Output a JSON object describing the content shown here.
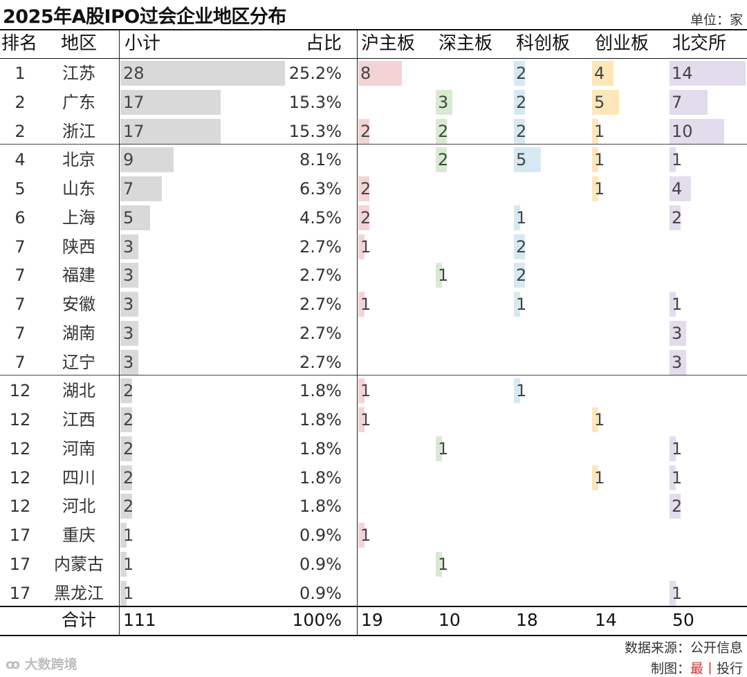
{
  "title": "2025年A股IPO过会企业地区分布",
  "unit": "单位：家",
  "colors": {
    "total_bar": "#d9d9d9",
    "shanghai_main": "#f4d3d5",
    "shenzhen_main": "#d9ead3",
    "star_market": "#d6e9f2",
    "chinext": "#fde7b9",
    "beijing": "#e2dcec"
  },
  "chart_data": {
    "type": "table",
    "title": "2025年A股IPO过会企业地区分布",
    "unit": "家",
    "columns": [
      "排名",
      "地区",
      "小计",
      "占比",
      "沪主板",
      "深主板",
      "科创板",
      "创业板",
      "北交所"
    ],
    "rows": [
      {
        "rank": "1",
        "region": "江苏",
        "total": 28,
        "share": "25.2%",
        "sh_main": 8,
        "sz_main": null,
        "star": 2,
        "chinext": 4,
        "bse": 14
      },
      {
        "rank": "2",
        "region": "广东",
        "total": 17,
        "share": "15.3%",
        "sh_main": null,
        "sz_main": 3,
        "star": 2,
        "chinext": 5,
        "bse": 7
      },
      {
        "rank": "2",
        "region": "浙江",
        "total": 17,
        "share": "15.3%",
        "sh_main": 2,
        "sz_main": 2,
        "star": 2,
        "chinext": 1,
        "bse": 10
      },
      {
        "rank": "4",
        "region": "北京",
        "total": 9,
        "share": "8.1%",
        "sh_main": null,
        "sz_main": 2,
        "star": 5,
        "chinext": 1,
        "bse": 1
      },
      {
        "rank": "5",
        "region": "山东",
        "total": 7,
        "share": "6.3%",
        "sh_main": 2,
        "sz_main": null,
        "star": null,
        "chinext": 1,
        "bse": 4
      },
      {
        "rank": "6",
        "region": "上海",
        "total": 5,
        "share": "4.5%",
        "sh_main": 2,
        "sz_main": null,
        "star": 1,
        "chinext": null,
        "bse": 2
      },
      {
        "rank": "7",
        "region": "陕西",
        "total": 3,
        "share": "2.7%",
        "sh_main": 1,
        "sz_main": null,
        "star": 2,
        "chinext": null,
        "bse": null
      },
      {
        "rank": "7",
        "region": "福建",
        "total": 3,
        "share": "2.7%",
        "sh_main": null,
        "sz_main": 1,
        "star": 2,
        "chinext": null,
        "bse": null
      },
      {
        "rank": "7",
        "region": "安徽",
        "total": 3,
        "share": "2.7%",
        "sh_main": 1,
        "sz_main": null,
        "star": 1,
        "chinext": null,
        "bse": 1
      },
      {
        "rank": "7",
        "region": "湖南",
        "total": 3,
        "share": "2.7%",
        "sh_main": null,
        "sz_main": null,
        "star": null,
        "chinext": null,
        "bse": 3
      },
      {
        "rank": "7",
        "region": "辽宁",
        "total": 3,
        "share": "2.7%",
        "sh_main": null,
        "sz_main": null,
        "star": null,
        "chinext": null,
        "bse": 3
      },
      {
        "rank": "12",
        "region": "湖北",
        "total": 2,
        "share": "1.8%",
        "sh_main": 1,
        "sz_main": null,
        "star": 1,
        "chinext": null,
        "bse": null
      },
      {
        "rank": "12",
        "region": "江西",
        "total": 2,
        "share": "1.8%",
        "sh_main": 1,
        "sz_main": null,
        "star": null,
        "chinext": 1,
        "bse": null
      },
      {
        "rank": "12",
        "region": "河南",
        "total": 2,
        "share": "1.8%",
        "sh_main": null,
        "sz_main": 1,
        "star": null,
        "chinext": null,
        "bse": 1
      },
      {
        "rank": "12",
        "region": "四川",
        "total": 2,
        "share": "1.8%",
        "sh_main": null,
        "sz_main": null,
        "star": null,
        "chinext": 1,
        "bse": 1
      },
      {
        "rank": "12",
        "region": "河北",
        "total": 2,
        "share": "1.8%",
        "sh_main": null,
        "sz_main": null,
        "star": null,
        "chinext": null,
        "bse": 2
      },
      {
        "rank": "17",
        "region": "重庆",
        "total": 1,
        "share": "0.9%",
        "sh_main": 1,
        "sz_main": null,
        "star": null,
        "chinext": null,
        "bse": null
      },
      {
        "rank": "17",
        "region": "内蒙古",
        "total": 1,
        "share": "0.9%",
        "sh_main": null,
        "sz_main": 1,
        "star": null,
        "chinext": null,
        "bse": null
      },
      {
        "rank": "17",
        "region": "黑龙江",
        "total": 1,
        "share": "0.9%",
        "sh_main": null,
        "sz_main": null,
        "star": null,
        "chinext": null,
        "bse": 1
      }
    ],
    "totals": {
      "label": "合计",
      "total": "111",
      "share": "100%",
      "sh_main": "19",
      "sz_main": "10",
      "star": "18",
      "chinext": "14",
      "bse": "50"
    }
  },
  "footer": {
    "source": "数据来源：公开信息",
    "maker_prefix": "制图：",
    "maker_a": "最",
    "maker_sep": "丨",
    "maker_b": "投行",
    "logo_mark": "ꝏ",
    "logo_text": "大数跨境"
  }
}
